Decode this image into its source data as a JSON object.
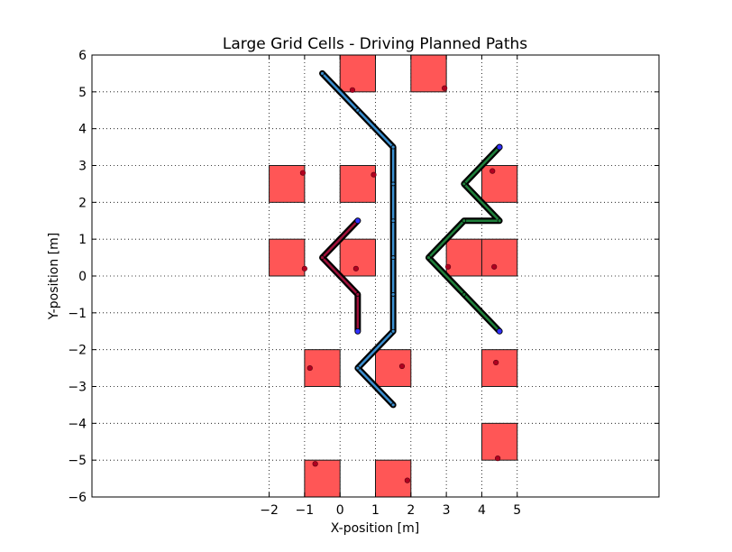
{
  "chart_data": {
    "type": "scatter",
    "title": "Large Grid Cells - Driving Planned Paths",
    "xlabel": "X-position [m]",
    "ylabel": "Y-position [m]",
    "xlim": [
      -7,
      9
    ],
    "ylim": [
      -6,
      6
    ],
    "xticks": [
      -2,
      -1,
      0,
      1,
      2,
      3,
      4,
      5
    ],
    "xtick_labels": [
      "−2",
      "−1",
      "0",
      "1",
      "2",
      "3",
      "4",
      "5"
    ],
    "yticks": [
      -6,
      -5,
      -4,
      -3,
      -2,
      -1,
      0,
      1,
      2,
      3,
      4,
      5,
      6
    ],
    "ytick_labels": [
      "−6",
      "−5",
      "−4",
      "−3",
      "−2",
      "−1",
      "0",
      "1",
      "2",
      "3",
      "4",
      "5",
      "6"
    ],
    "grid": true,
    "cell_size": 1,
    "cells": [
      {
        "x": 0,
        "y": 5,
        "point": [
          0.35,
          5.05
        ]
      },
      {
        "x": 2,
        "y": 5,
        "point": [
          2.95,
          5.1
        ]
      },
      {
        "x": -2,
        "y": 2,
        "point": [
          -1.05,
          2.8
        ]
      },
      {
        "x": 0,
        "y": 2,
        "point": [
          0.95,
          2.75
        ]
      },
      {
        "x": -2,
        "y": 0,
        "point": [
          -1.0,
          0.2
        ]
      },
      {
        "x": 0,
        "y": 0,
        "point": [
          0.45,
          0.2
        ]
      },
      {
        "x": 3,
        "y": 0,
        "point": [
          3.05,
          0.25
        ]
      },
      {
        "x": 4,
        "y": 0,
        "point": [
          4.35,
          0.25
        ]
      },
      {
        "x": 4,
        "y": 2,
        "point": [
          4.3,
          2.85
        ]
      },
      {
        "x": -1,
        "y": -3,
        "point": [
          -0.85,
          -2.5
        ]
      },
      {
        "x": 1,
        "y": -3,
        "point": [
          1.75,
          -2.45
        ]
      },
      {
        "x": 4,
        "y": -3,
        "point": [
          4.4,
          -2.35
        ]
      },
      {
        "x": 4,
        "y": -5,
        "point": [
          4.45,
          -4.95
        ]
      },
      {
        "x": -1,
        "y": -6,
        "point": [
          -0.7,
          -5.1
        ]
      },
      {
        "x": 1,
        "y": -6,
        "point": [
          1.9,
          -5.55
        ]
      }
    ],
    "paths": [
      {
        "color": "#3a8fd0",
        "points": [
          [
            -0.5,
            5.5
          ],
          [
            0.5,
            4.5
          ],
          [
            1.5,
            3.5
          ],
          [
            1.5,
            2.5
          ],
          [
            1.5,
            1.5
          ],
          [
            1.5,
            0.5
          ],
          [
            1.5,
            -0.5
          ],
          [
            1.5,
            -1.5
          ],
          [
            0.5,
            -2.5
          ],
          [
            1.5,
            -3.5
          ]
        ]
      },
      {
        "color": "#a0103a",
        "points": [
          [
            0.5,
            1.5
          ],
          [
            -0.5,
            0.5
          ],
          [
            0.5,
            -0.5
          ],
          [
            0.5,
            -1.5
          ]
        ],
        "end_color": "#3030ff"
      },
      {
        "color": "#1e7f3a",
        "points": [
          [
            4.5,
            3.5
          ],
          [
            3.5,
            2.5
          ],
          [
            4.5,
            1.5
          ],
          [
            3.5,
            1.5
          ],
          [
            2.5,
            0.5
          ],
          [
            3.5,
            -0.5
          ],
          [
            4.5,
            -1.5
          ]
        ],
        "end_color": "#3030ff"
      }
    ],
    "colors": {
      "cell_fill": "#ff4d4d",
      "cell_edge": "#1a1a1a",
      "cell_point": "#b00020",
      "path_outline": "#000000"
    }
  }
}
